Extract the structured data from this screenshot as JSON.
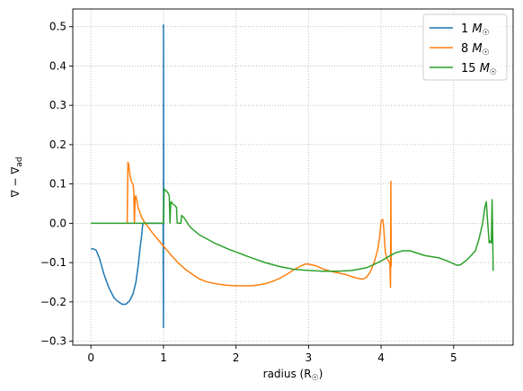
{
  "chart_data": {
    "type": "line",
    "title": "",
    "xlabel": "radius ($R_\\odot$)",
    "ylabel": "$\\nabla - \\nabla_{\\rm ad}$",
    "xlabel_text": "radius (R",
    "xlabel_sub": "☉",
    "xlabel_close": ")",
    "ylabel_text": "∇ − ∇",
    "ylabel_sub": "ad",
    "xlim": [
      -0.25,
      5.82
    ],
    "ylim": [
      -0.31,
      0.545
    ],
    "xticks": [
      0,
      1,
      2,
      3,
      4,
      5
    ],
    "xtick_labels": [
      "0",
      "1",
      "2",
      "3",
      "4",
      "5"
    ],
    "yticks": [
      -0.3,
      -0.2,
      -0.1,
      0.0,
      0.1,
      0.2,
      0.3,
      0.4,
      0.5
    ],
    "ytick_labels": [
      "−0.3",
      "−0.2",
      "−0.1",
      "0.0",
      "0.1",
      "0.2",
      "0.3",
      "0.4",
      "0.5"
    ],
    "grid": true,
    "legend_position": "top-right",
    "series": [
      {
        "name": "1 M☉",
        "label_num": "1 ",
        "label_M": "M",
        "label_sub": "☉",
        "color": "#1f77b4",
        "x": [
          0.0,
          0.03,
          0.07,
          0.12,
          0.18,
          0.25,
          0.32,
          0.38,
          0.43,
          0.48,
          0.53,
          0.58,
          0.62,
          0.65,
          0.68,
          0.7,
          0.71,
          0.72,
          0.73,
          0.74,
          0.76,
          0.8,
          0.85,
          0.9,
          0.95,
          0.99,
          0.995,
          1.0,
          1.0,
          1.0,
          1.003
        ],
        "y": [
          -0.065,
          -0.065,
          -0.068,
          -0.09,
          -0.13,
          -0.165,
          -0.19,
          -0.2,
          -0.206,
          -0.206,
          -0.198,
          -0.18,
          -0.15,
          -0.11,
          -0.06,
          -0.03,
          -0.01,
          0.0,
          0.0,
          0.0,
          0.0,
          0.0,
          0.0,
          0.0,
          0.0,
          0.0,
          0.0,
          -0.265,
          0.505,
          0.5,
          0.0
        ]
      },
      {
        "name": "8 M☉",
        "label_num": "8 ",
        "label_M": "M",
        "label_sub": "☉",
        "color": "#ff7f0e",
        "x": [
          0.5,
          0.51,
          0.52,
          0.54,
          0.56,
          0.58,
          0.59,
          0.6,
          0.61,
          0.62,
          0.63,
          0.64,
          0.65,
          0.66,
          0.68,
          0.7,
          0.72,
          0.75,
          0.8,
          0.85,
          0.9,
          0.95,
          1.0,
          1.1,
          1.2,
          1.3,
          1.4,
          1.5,
          1.6,
          1.7,
          1.8,
          1.9,
          2.0,
          2.1,
          2.2,
          2.3,
          2.4,
          2.5,
          2.6,
          2.7,
          2.8,
          2.9,
          2.95,
          3.0,
          3.05,
          3.1,
          3.15,
          3.2,
          3.3,
          3.4,
          3.5,
          3.6,
          3.7,
          3.75,
          3.8,
          3.85,
          3.9,
          3.95,
          3.98,
          4.0,
          4.02,
          4.03,
          4.04,
          4.05,
          4.06,
          4.08,
          4.1,
          4.12,
          4.13,
          4.135,
          4.14
        ],
        "y": [
          0.0,
          0.155,
          0.15,
          0.12,
          0.105,
          0.1,
          0.085,
          0.0,
          0.065,
          0.07,
          0.06,
          0.05,
          0.04,
          0.035,
          0.025,
          0.015,
          0.008,
          0.0,
          -0.012,
          -0.025,
          -0.036,
          -0.047,
          -0.058,
          -0.08,
          -0.1,
          -0.117,
          -0.13,
          -0.142,
          -0.149,
          -0.153,
          -0.156,
          -0.158,
          -0.159,
          -0.159,
          -0.159,
          -0.157,
          -0.154,
          -0.148,
          -0.14,
          -0.13,
          -0.118,
          -0.108,
          -0.104,
          -0.104,
          -0.106,
          -0.108,
          -0.112,
          -0.116,
          -0.122,
          -0.126,
          -0.13,
          -0.136,
          -0.141,
          -0.142,
          -0.137,
          -0.124,
          -0.102,
          -0.07,
          -0.035,
          0.005,
          0.01,
          0.0,
          -0.02,
          -0.05,
          -0.075,
          -0.09,
          -0.095,
          -0.1,
          -0.163,
          0.107,
          -0.11
        ]
      },
      {
        "name": "15 M☉",
        "label_num": "15 ",
        "label_M": "M",
        "label_sub": "☉",
        "color": "#2ca02c",
        "x": [
          0.0,
          0.5,
          0.9,
          1.0,
          1.01,
          1.02,
          1.04,
          1.06,
          1.08,
          1.09,
          1.1,
          1.11,
          1.12,
          1.14,
          1.16,
          1.18,
          1.19,
          1.2,
          1.22,
          1.24,
          1.25,
          1.26,
          1.28,
          1.3,
          1.32,
          1.34,
          1.4,
          1.5,
          1.6,
          1.7,
          1.8,
          1.9,
          2.0,
          2.1,
          2.2,
          2.4,
          2.6,
          2.8,
          3.0,
          3.2,
          3.4,
          3.6,
          3.8,
          3.9,
          4.0,
          4.1,
          4.2,
          4.3,
          4.4,
          4.5,
          4.6,
          4.7,
          4.8,
          4.9,
          5.0,
          5.05,
          5.1,
          5.15,
          5.2,
          5.25,
          5.3,
          5.35,
          5.4,
          5.43,
          5.45,
          5.47,
          5.49,
          5.5,
          5.52,
          5.53,
          5.54,
          5.545,
          5.55
        ],
        "y": [
          0.0,
          0.0,
          0.0,
          0.0,
          0.088,
          0.085,
          0.082,
          0.078,
          0.07,
          0.0,
          0.052,
          0.055,
          0.05,
          0.048,
          0.045,
          0.04,
          0.0,
          0.0,
          0.0,
          0.0,
          0.02,
          0.018,
          0.015,
          0.01,
          0.004,
          -0.003,
          -0.015,
          -0.03,
          -0.04,
          -0.05,
          -0.058,
          -0.066,
          -0.073,
          -0.08,
          -0.087,
          -0.1,
          -0.11,
          -0.117,
          -0.12,
          -0.122,
          -0.122,
          -0.12,
          -0.113,
          -0.105,
          -0.096,
          -0.085,
          -0.075,
          -0.07,
          -0.07,
          -0.076,
          -0.082,
          -0.085,
          -0.088,
          -0.095,
          -0.103,
          -0.107,
          -0.105,
          -0.098,
          -0.09,
          -0.08,
          -0.07,
          -0.04,
          0.0,
          0.04,
          0.055,
          0.0,
          -0.05,
          -0.045,
          -0.05,
          0.06,
          -0.055,
          -0.12,
          -0.12
        ]
      }
    ]
  }
}
